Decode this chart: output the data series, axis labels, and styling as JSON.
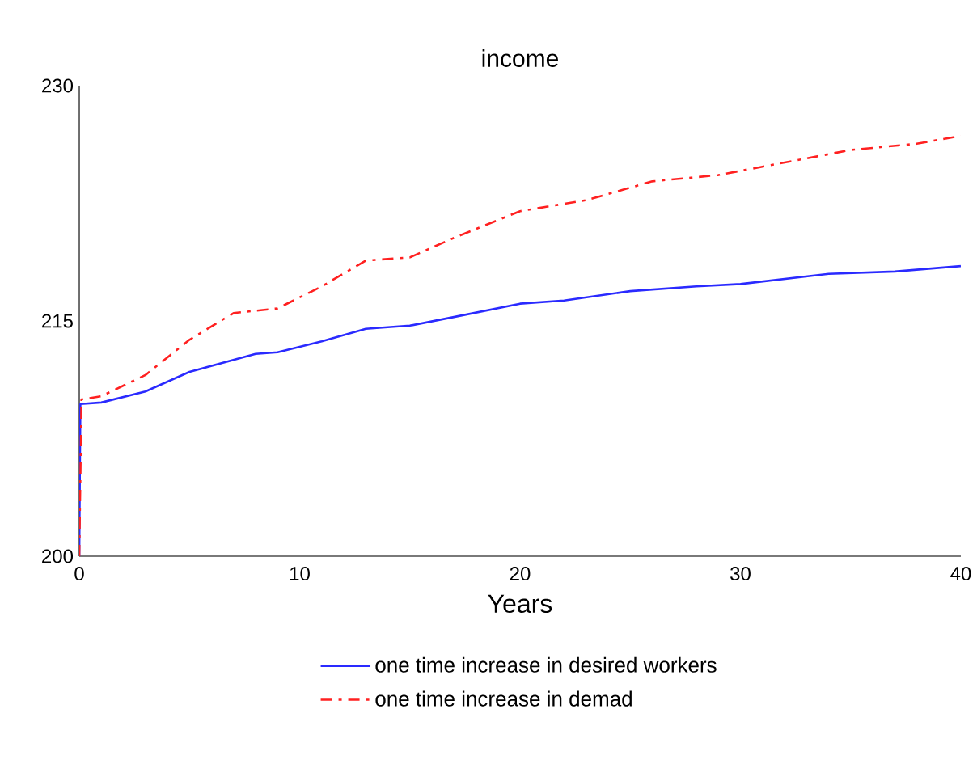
{
  "chart_data": {
    "type": "line",
    "title": "income",
    "xlabel": "Years",
    "xlim": [
      0,
      40
    ],
    "xticks": [
      0,
      10,
      20,
      30,
      40
    ],
    "ylim": [
      200,
      230
    ],
    "yticks": [
      200,
      215,
      230
    ],
    "grid": false,
    "legend": "bottom",
    "series": [
      {
        "name": "one time increase in desired workers",
        "color": "#2a2aff",
        "line_style": "solid",
        "x": [
          0,
          0.05,
          1,
          3,
          5,
          8,
          9,
          11,
          13,
          15,
          17,
          20,
          22,
          25,
          28,
          30,
          34,
          37,
          40
        ],
        "values": [
          200,
          209.7,
          209.8,
          210.5,
          211.75,
          212.9,
          213,
          213.7,
          214.5,
          214.7,
          215.25,
          216.1,
          216.3,
          216.9,
          217.2,
          217.35,
          218,
          218.15,
          218.5
        ]
      },
      {
        "name": "one time increase in demad",
        "color": "#ff2020",
        "line_style": "dashdot",
        "x": [
          0,
          0.1,
          1,
          3,
          5,
          7,
          9,
          11,
          13,
          15,
          17,
          20,
          23,
          26,
          29,
          32,
          35,
          38,
          40
        ],
        "values": [
          200,
          210,
          210.2,
          211.55,
          213.8,
          215.5,
          215.8,
          217.2,
          218.85,
          219.05,
          220.3,
          222,
          222.7,
          223.9,
          224.3,
          225.1,
          225.9,
          226.3,
          226.8
        ]
      }
    ]
  }
}
